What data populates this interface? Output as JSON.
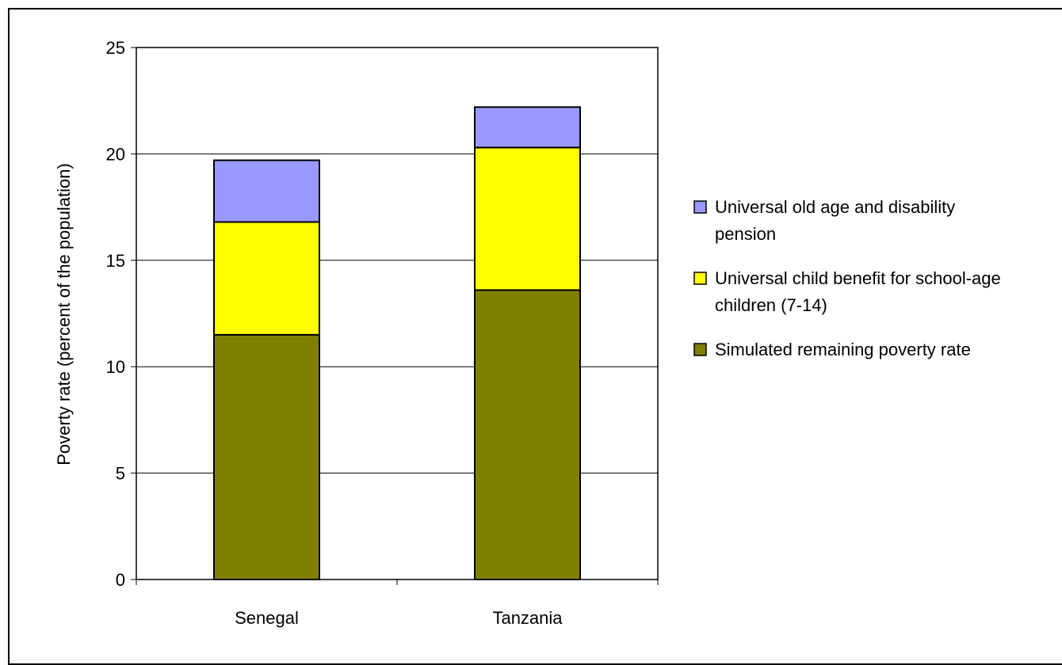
{
  "chart_data": {
    "type": "bar",
    "stacked": true,
    "title": "",
    "xlabel": "",
    "ylabel": "Poverty rate (percent of the population)",
    "ylim": [
      0,
      25
    ],
    "yticks": [
      0,
      5,
      10,
      15,
      20,
      25
    ],
    "grid": true,
    "legend_position": "right",
    "categories": [
      "Senegal",
      "Tanzania"
    ],
    "series": [
      {
        "name": "Simulated remaining poverty rate",
        "values": [
          11.5,
          13.6
        ],
        "color": "#808000"
      },
      {
        "name": "Universal child benefit for school-age children (7-14)",
        "legend_lines": [
          "Universal child benefit for school-age",
          "children (7-14)"
        ],
        "values": [
          5.3,
          6.7
        ],
        "color": "#ffff00"
      },
      {
        "name": "Universal old age and disability pension",
        "legend_lines": [
          "Universal old age and disability",
          "pension"
        ],
        "values": [
          2.9,
          1.9
        ],
        "color": "#9999ff"
      }
    ],
    "legend_order": [
      2,
      1,
      0
    ]
  }
}
